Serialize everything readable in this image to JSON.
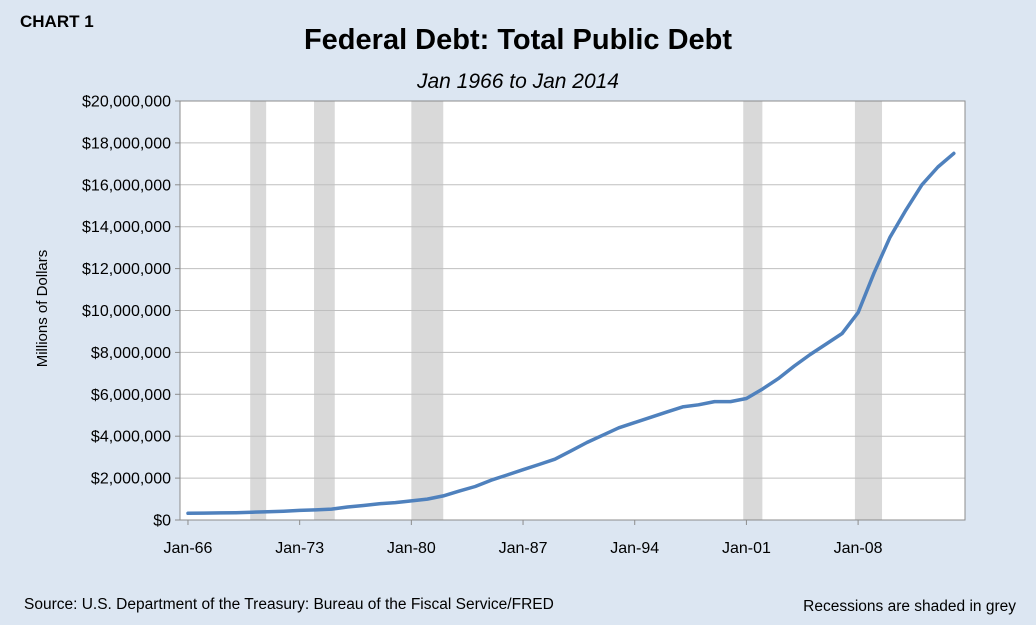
{
  "header": {
    "chart_label": "CHART 1"
  },
  "footer": {
    "source": "Source: U.S. Department of the Treasury: Bureau of the Fiscal Service/FRED",
    "note": "Recessions are shaded in grey"
  },
  "colors": {
    "background": "#dce6f2",
    "plot_background": "#ffffff",
    "series": "#4f81bd",
    "recession": "#d9d9d9",
    "grid": "#bfbfbf"
  },
  "chart_data": {
    "type": "line",
    "title": "Federal Debt: Total Public Debt",
    "subtitle": "Jan 1966 to Jan 2014",
    "ylabel": "Millions of Dollars",
    "xlabel": "",
    "grid": true,
    "legend": "none",
    "xlim": [
      1965.5,
      2014.7
    ],
    "ylim": [
      0,
      20000000
    ],
    "x_ticks": [
      {
        "x": 1966,
        "label": "Jan-66"
      },
      {
        "x": 1973,
        "label": "Jan-73"
      },
      {
        "x": 1980,
        "label": "Jan-80"
      },
      {
        "x": 1987,
        "label": "Jan-87"
      },
      {
        "x": 1994,
        "label": "Jan-94"
      },
      {
        "x": 2001,
        "label": "Jan-01"
      },
      {
        "x": 2008,
        "label": "Jan-08"
      }
    ],
    "y_ticks": [
      {
        "y": 0,
        "label": "$0"
      },
      {
        "y": 2000000,
        "label": "$2,000,000"
      },
      {
        "y": 4000000,
        "label": "$4,000,000"
      },
      {
        "y": 6000000,
        "label": "$6,000,000"
      },
      {
        "y": 8000000,
        "label": "$8,000,000"
      },
      {
        "y": 10000000,
        "label": "$10,000,000"
      },
      {
        "y": 12000000,
        "label": "$12,000,000"
      },
      {
        "y": 14000000,
        "label": "$14,000,000"
      },
      {
        "y": 16000000,
        "label": "$16,000,000"
      },
      {
        "y": 18000000,
        "label": "$18,000,000"
      },
      {
        "y": 20000000,
        "label": "$20,000,000"
      }
    ],
    "recessions": [
      [
        1969.9,
        1970.9
      ],
      [
        1973.9,
        1975.2
      ],
      [
        1980.0,
        1982.0
      ],
      [
        2000.8,
        2002.0
      ],
      [
        2007.8,
        2009.5
      ]
    ],
    "series": [
      {
        "x": [
          1966,
          1967,
          1968,
          1969,
          1970,
          1971,
          1972,
          1973,
          1974,
          1975,
          1976,
          1977,
          1978,
          1979,
          1980,
          1981,
          1982,
          1983,
          1984,
          1985,
          1986,
          1987,
          1988,
          1989,
          1990,
          1991,
          1992,
          1993,
          1994,
          1995,
          1996,
          1997,
          1998,
          1999,
          2000,
          2001,
          2002,
          2003,
          2004,
          2005,
          2006,
          2007,
          2008,
          2009,
          2010,
          2011,
          2012,
          2013,
          2014
        ],
        "values": [
          320000,
          330000,
          340000,
          350000,
          370000,
          390000,
          420000,
          460000,
          480000,
          520000,
          620000,
          690000,
          780000,
          830000,
          910000,
          1000000,
          1150000,
          1380000,
          1600000,
          1900000,
          2150000,
          2400000,
          2650000,
          2900000,
          3300000,
          3700000,
          4050000,
          4400000,
          4650000,
          4900000,
          5150000,
          5400000,
          5500000,
          5650000,
          5650000,
          5800000,
          6250000,
          6750000,
          7350000,
          7900000,
          8400000,
          8900000,
          9900000,
          11800000,
          13500000,
          14800000,
          16000000,
          16850000,
          17500000
        ]
      }
    ]
  }
}
